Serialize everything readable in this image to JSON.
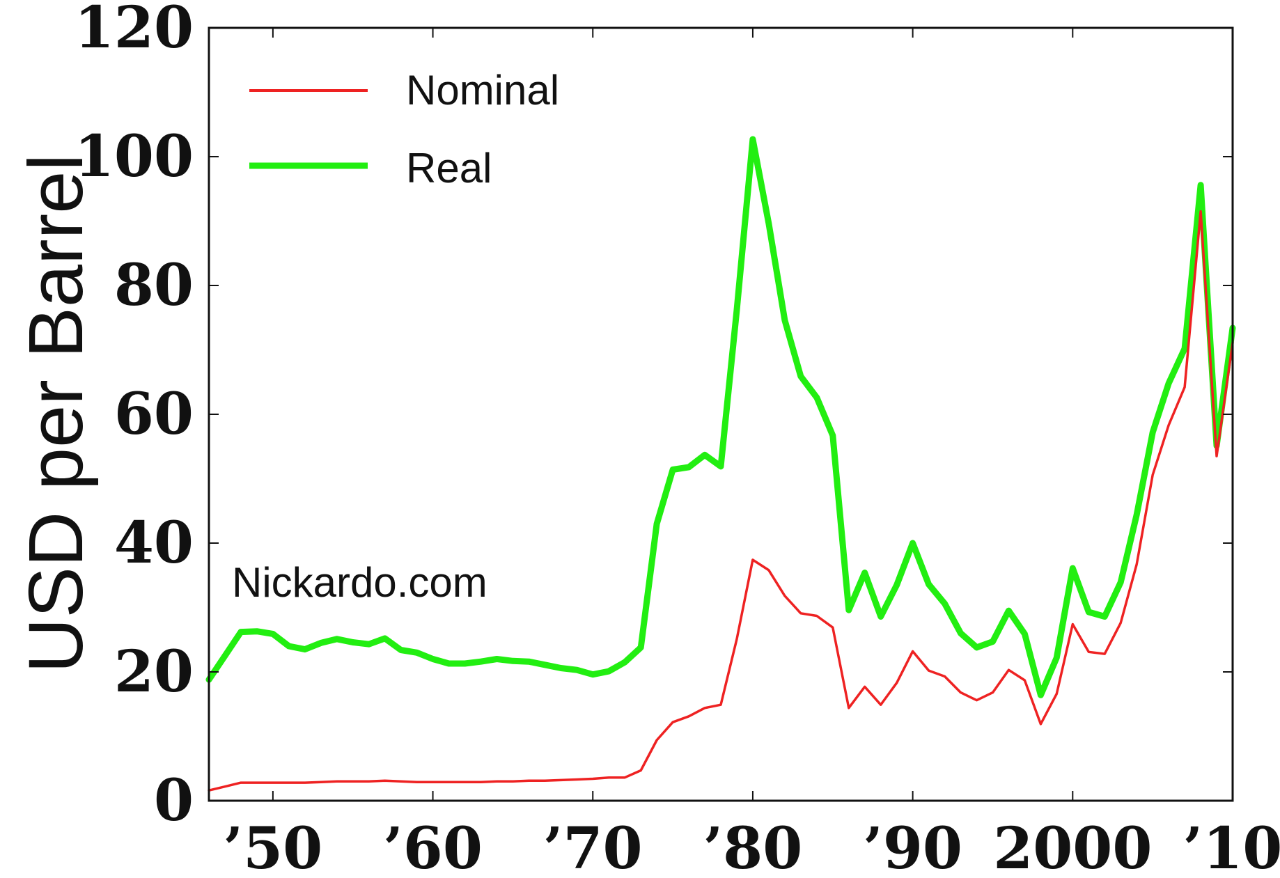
{
  "chart_data": {
    "type": "line",
    "title": "",
    "xlabel": "",
    "ylabel": "USD per Barrel",
    "xlim": [
      1946,
      2010
    ],
    "ylim": [
      0,
      120
    ],
    "grid": false,
    "legend_position": "top-left",
    "watermark": "Nickardo.com",
    "x_ticks": [
      {
        "value": 1950,
        "label": "’50"
      },
      {
        "value": 1960,
        "label": "’60"
      },
      {
        "value": 1970,
        "label": "’70"
      },
      {
        "value": 1980,
        "label": "’80"
      },
      {
        "value": 1990,
        "label": "’90"
      },
      {
        "value": 2000,
        "label": "2000"
      },
      {
        "value": 2010,
        "label": "’10"
      }
    ],
    "y_ticks": [
      {
        "value": 0,
        "label": "0"
      },
      {
        "value": 20,
        "label": "20"
      },
      {
        "value": 40,
        "label": "40"
      },
      {
        "value": 60,
        "label": "60"
      },
      {
        "value": 80,
        "label": "80"
      },
      {
        "value": 100,
        "label": "100"
      },
      {
        "value": 120,
        "label": "120"
      }
    ],
    "x": [
      1946,
      1947,
      1948,
      1949,
      1950,
      1951,
      1952,
      1953,
      1954,
      1955,
      1956,
      1957,
      1958,
      1959,
      1960,
      1961,
      1962,
      1963,
      1964,
      1965,
      1966,
      1967,
      1968,
      1969,
      1970,
      1971,
      1972,
      1973,
      1974,
      1975,
      1976,
      1977,
      1978,
      1979,
      1980,
      1981,
      1982,
      1983,
      1984,
      1985,
      1986,
      1987,
      1988,
      1989,
      1990,
      1991,
      1992,
      1993,
      1994,
      1995,
      1996,
      1997,
      1998,
      1999,
      2000,
      2001,
      2002,
      2003,
      2004,
      2005,
      2006,
      2007,
      2008,
      2009,
      2010
    ],
    "series": [
      {
        "name": "Nominal",
        "color": "#ee2222",
        "values": [
          1.6,
          2.2,
          2.8,
          2.8,
          2.8,
          2.8,
          2.8,
          2.9,
          3.0,
          3.0,
          3.0,
          3.1,
          3.0,
          2.9,
          2.9,
          2.9,
          2.9,
          2.9,
          3.0,
          3.0,
          3.1,
          3.1,
          3.2,
          3.3,
          3.4,
          3.6,
          3.6,
          4.7,
          9.4,
          12.2,
          13.1,
          14.4,
          14.9,
          25.1,
          37.4,
          35.8,
          31.8,
          29.1,
          28.7,
          26.9,
          14.4,
          17.7,
          14.9,
          18.3,
          23.2,
          20.2,
          19.3,
          16.8,
          15.6,
          16.8,
          20.3,
          18.7,
          11.9,
          16.6,
          27.4,
          23.1,
          22.8,
          27.6,
          36.7,
          50.6,
          58.3,
          64.2,
          91.5,
          53.5,
          71.1
        ]
      },
      {
        "name": "Real",
        "color": "#22ee11",
        "values": [
          18.8,
          22.5,
          26.2,
          26.3,
          25.9,
          24.0,
          23.5,
          24.5,
          25.1,
          24.6,
          24.3,
          25.2,
          23.4,
          23.0,
          22.0,
          21.3,
          21.3,
          21.6,
          22.0,
          21.7,
          21.6,
          21.1,
          20.6,
          20.3,
          19.6,
          20.1,
          21.5,
          23.8,
          43.0,
          51.4,
          51.8,
          53.7,
          51.9,
          76.2,
          102.7,
          89.6,
          74.6,
          65.9,
          62.6,
          56.7,
          29.6,
          35.4,
          28.6,
          33.5,
          40.0,
          33.6,
          30.6,
          26.0,
          23.8,
          24.7,
          29.5,
          25.9,
          16.4,
          22.2,
          36.1,
          29.3,
          28.6,
          33.9,
          44.4,
          57.2,
          64.8,
          70.2,
          95.6,
          55.1,
          73.4
        ]
      }
    ]
  }
}
